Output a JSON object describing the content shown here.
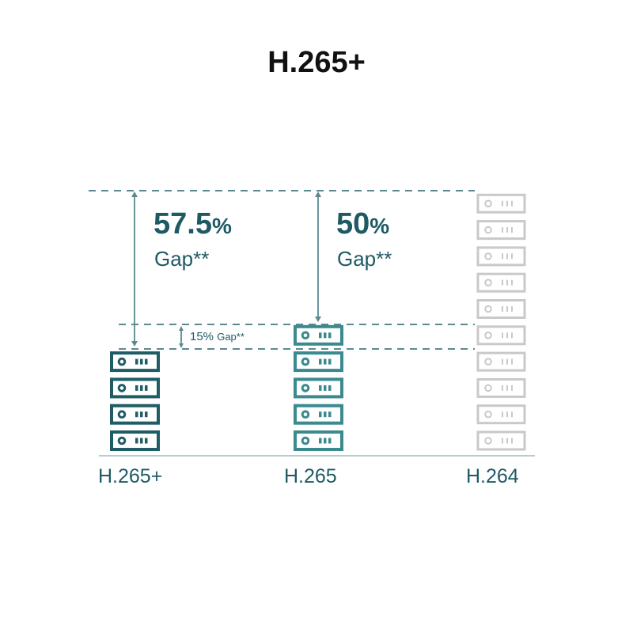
{
  "title": "H.265+",
  "gaps": {
    "h265plus": {
      "value": "57.5",
      "unit": "%",
      "label": "Gap**"
    },
    "h265": {
      "value": "50",
      "unit": "%",
      "label": "Gap**"
    },
    "step": {
      "value": "15%",
      "label": "Gap**"
    }
  },
  "columns": [
    {
      "label": "H.265+",
      "servers": 4,
      "color": "#1f5c64"
    },
    {
      "label": "H.265",
      "servers": 5,
      "color": "#3b8a90"
    },
    {
      "label": "H.264",
      "servers": 10,
      "color": "#c9c9c9"
    }
  ],
  "colors": {
    "text": "#1e5a63",
    "guide": "#5a8a90",
    "baseline": "#9fbcc0"
  },
  "icon": "server-icon"
}
